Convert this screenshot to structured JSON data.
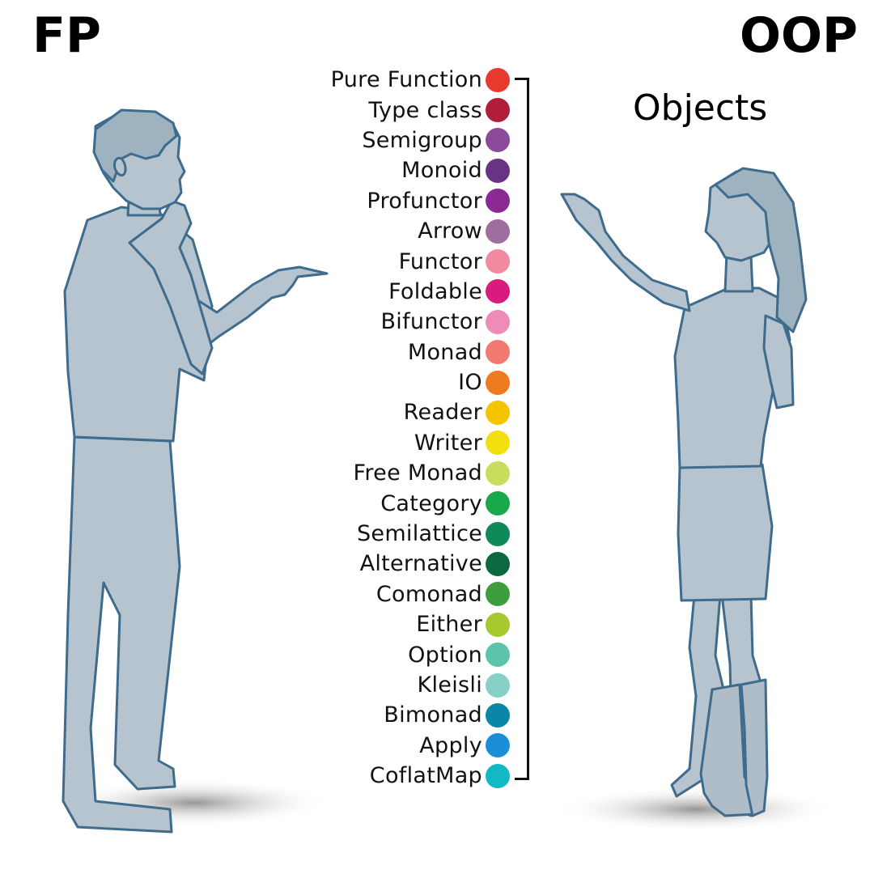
{
  "headlines": {
    "left": "FP",
    "right": "OOP"
  },
  "objects_label": "Objects",
  "concepts": [
    {
      "label": "Pure Function",
      "color": "#e8392e"
    },
    {
      "label": "Type class",
      "color": "#b01e3a"
    },
    {
      "label": "Semigroup",
      "color": "#8c4a9c"
    },
    {
      "label": "Monoid",
      "color": "#6a3285"
    },
    {
      "label": "Profunctor",
      "color": "#8a2a92"
    },
    {
      "label": "Arrow",
      "color": "#a06e9e"
    },
    {
      "label": "Functor",
      "color": "#f08aa0"
    },
    {
      "label": "Foldable",
      "color": "#d81b7c"
    },
    {
      "label": "Bifunctor",
      "color": "#ee8cb8"
    },
    {
      "label": "Monad",
      "color": "#f07a72"
    },
    {
      "label": "IO",
      "color": "#f07a20"
    },
    {
      "label": "Reader",
      "color": "#f5c400"
    },
    {
      "label": "Writer",
      "color": "#f2df10"
    },
    {
      "label": "Free Monad",
      "color": "#c9dc5c"
    },
    {
      "label": "Category",
      "color": "#19a84a"
    },
    {
      "label": "Semilattice",
      "color": "#0e8a58"
    },
    {
      "label": "Alternative",
      "color": "#0b6840"
    },
    {
      "label": "Comonad",
      "color": "#3e9e3e"
    },
    {
      "label": "Either",
      "color": "#a8c830"
    },
    {
      "label": "Option",
      "color": "#5cc4a8"
    },
    {
      "label": "Kleisli",
      "color": "#86d0c8"
    },
    {
      "label": "Bimonad",
      "color": "#0a86a6"
    },
    {
      "label": "Apply",
      "color": "#1a8ed6"
    },
    {
      "label": "CoflatMap",
      "color": "#12b8c4"
    }
  ],
  "colors": {
    "figure_fill": "#b5c4cf",
    "figure_outline": "#3f6b8c",
    "shadow": "#9a9a9a"
  }
}
